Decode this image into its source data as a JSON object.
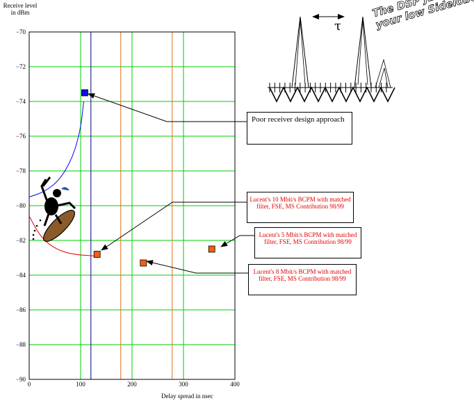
{
  "chart_data": {
    "type": "scatter",
    "ylabel": "Receive level in dBm",
    "xlabel": "Delay spread in nsec",
    "xlim": [
      0,
      400
    ],
    "ylim": [
      -90,
      -70
    ],
    "x_ticks": [
      "0",
      "100",
      "200",
      "300",
      "400"
    ],
    "y_ticks": [
      "-70",
      "-72",
      "-74",
      "-76",
      "-78",
      "-80",
      "-82",
      "-84",
      "-86",
      "-88",
      "-90"
    ],
    "grid": true,
    "points": [
      {
        "x": 108,
        "y": -73.5,
        "color": "#1010e0"
      },
      {
        "x": 132,
        "y": -82.8,
        "color": "#f06010"
      },
      {
        "x": 222,
        "y": -83.3,
        "color": "#f06010"
      },
      {
        "x": 355,
        "y": -82.5,
        "color": "#f06010"
      }
    ],
    "vertical_lines": [
      {
        "x": 120,
        "color": "#000080"
      },
      {
        "x": 178,
        "color": "#e07020"
      },
      {
        "x": 278,
        "color": "#e07020"
      }
    ],
    "curves": [
      {
        "color": "#0000ff",
        "points": [
          [
            0,
            -79.5
          ],
          [
            30,
            -79.2
          ],
          [
            60,
            -78.5
          ],
          [
            85,
            -77.2
          ],
          [
            100,
            -75.6
          ],
          [
            106,
            -74.0
          ]
        ]
      },
      {
        "color": "#e00000",
        "points": [
          [
            0,
            -80.6
          ],
          [
            20,
            -81.7
          ],
          [
            45,
            -82.4
          ],
          [
            80,
            -82.8
          ],
          [
            130,
            -82.9
          ]
        ]
      }
    ]
  },
  "annotations": {
    "poor_receiver": "Poor receiver design approach",
    "lucent_10": "Lucent's 10 Mbit/s BCPM with matched filter, FSE, MS Contribution 98/99",
    "lucent_5": "Lucent's 5 Mbit/s BCPM with matched filter, FSE, MS Contribution 98/99",
    "lucent_8": "Lucent's 8 Mbit/s BCPM with matched filter, FSE, MS Contribution 98/99"
  },
  "inset": {
    "tau": "τ",
    "slogan_line1": "The DSP just loves",
    "slogan_line2": "your low Sidelobes!"
  },
  "colors": {
    "grid": "#00cc00",
    "border": "#000000"
  }
}
